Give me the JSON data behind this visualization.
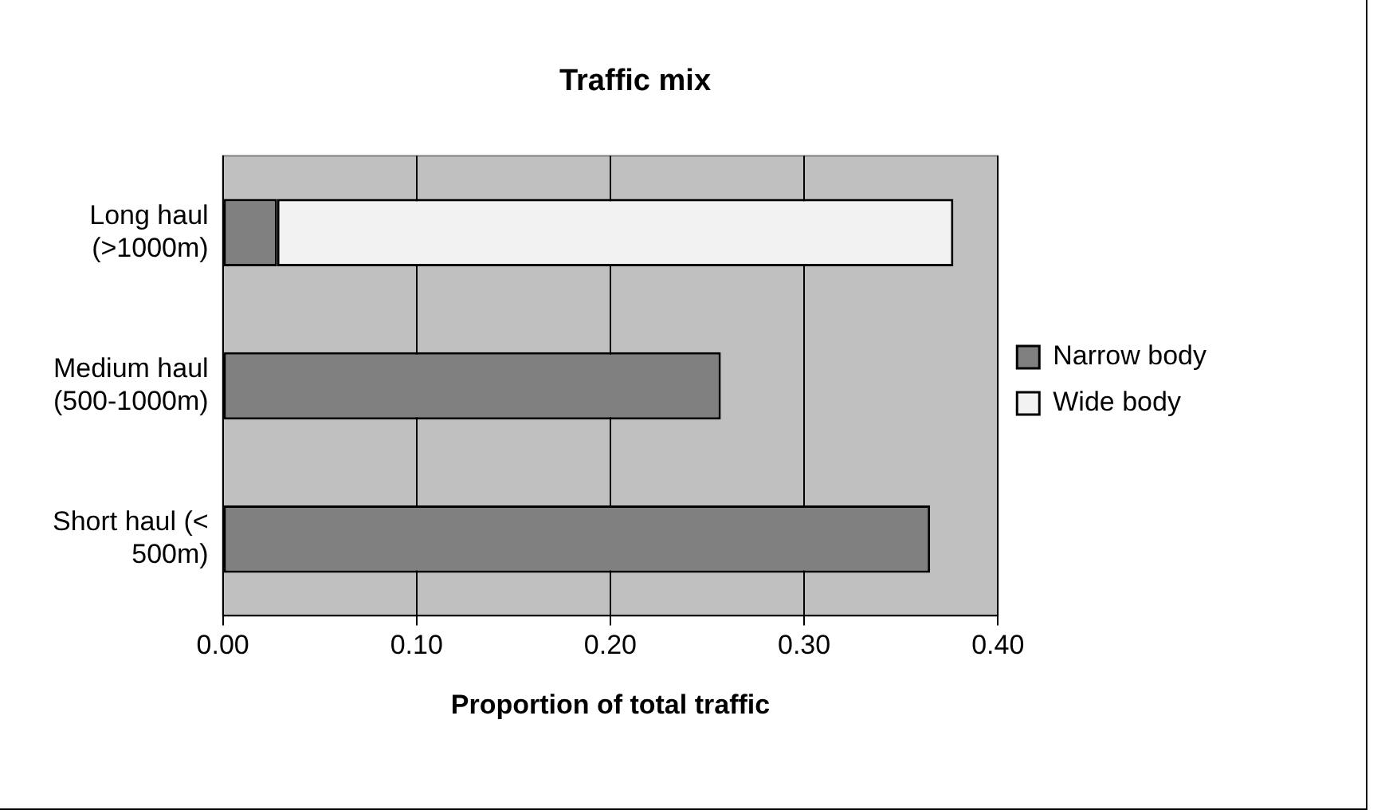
{
  "chart_data": {
    "type": "bar",
    "title": "Traffic mix",
    "xlabel": "Proportion of total traffic",
    "orientation": "horizontal",
    "stacked": true,
    "categories": [
      "Long haul (>1000m)",
      "Medium haul (500-1000m)",
      "Short haul (< 500m)"
    ],
    "series": [
      {
        "name": "Narrow body",
        "color": "#808080",
        "values": [
          0.028,
          0.257,
          0.365
        ]
      },
      {
        "name": "Wide body",
        "color": "#f2f2f2",
        "values": [
          0.349,
          null,
          null
        ]
      }
    ],
    "xlim": [
      0,
      0.4
    ],
    "xticks": [
      {
        "value": 0,
        "label": "0.00"
      },
      {
        "value": 0.1,
        "label": "0.10"
      },
      {
        "value": 0.2,
        "label": "0.20"
      },
      {
        "value": 0.3,
        "label": "0.30"
      },
      {
        "value": 0.4,
        "label": "0.40"
      }
    ],
    "grid": "x",
    "legend": "right"
  }
}
